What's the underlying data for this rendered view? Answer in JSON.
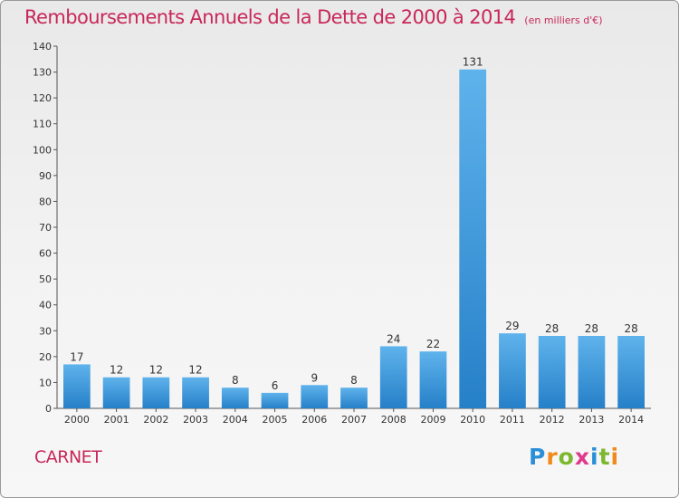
{
  "header": {
    "title": "Remboursements Annuels de la Dette de 2000 à 2014",
    "unit": "(en milliers d'€)"
  },
  "footer": {
    "commune": "CARNET",
    "logo": {
      "letters": [
        "P",
        "r",
        "o",
        "x",
        "i",
        "t",
        "i"
      ],
      "colors": [
        "#2a8fd6",
        "#f08a1c",
        "#7cb82f",
        "#e03a8f",
        "#2a8fd6",
        "#7cb82f",
        "#f08a1c"
      ]
    }
  },
  "chart_data": {
    "type": "bar",
    "categories": [
      "2000",
      "2001",
      "2002",
      "2003",
      "2004",
      "2005",
      "2006",
      "2007",
      "2008",
      "2009",
      "2010",
      "2011",
      "2012",
      "2013",
      "2014"
    ],
    "values": [
      17,
      12,
      12,
      12,
      8,
      6,
      9,
      8,
      24,
      22,
      131,
      29,
      28,
      28,
      28
    ],
    "ylim": [
      0,
      140
    ],
    "ytick_step": 10,
    "grid": false,
    "colors": {
      "bar_light": "#5fb3ec",
      "bar_dark": "#2680c8",
      "axis": "#555555"
    }
  }
}
